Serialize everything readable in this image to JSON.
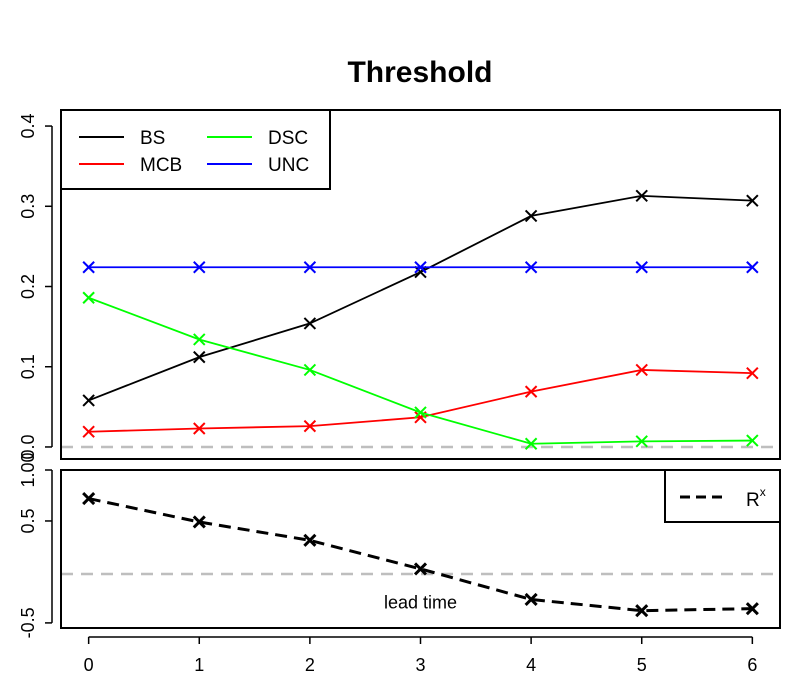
{
  "chart_data": [
    {
      "type": "line",
      "title": "Threshold",
      "xlabel": "",
      "ylabel": "",
      "x": [
        0,
        1,
        2,
        3,
        4,
        5,
        6
      ],
      "xlim": [
        -0.25,
        6.25
      ],
      "ylim": [
        -0.015,
        0.42
      ],
      "yticks": [
        "0.0",
        "0.1",
        "0.2",
        "0.3",
        "0.4"
      ],
      "ytick_values": [
        0,
        0.1,
        0.2,
        0.3,
        0.4
      ],
      "reference_line": {
        "y": 0,
        "style": "dashed",
        "color": "#bebebe"
      },
      "legend": {
        "placement": "top-left",
        "columns": 2
      },
      "series": [
        {
          "name": "BS",
          "color": "#000000",
          "values": [
            0.058,
            0.112,
            0.154,
            0.218,
            0.288,
            0.313,
            0.307
          ]
        },
        {
          "name": "MCB",
          "color": "#ff0000",
          "values": [
            0.019,
            0.023,
            0.026,
            0.037,
            0.069,
            0.096,
            0.092
          ]
        },
        {
          "name": "DSC",
          "color": "#00ff00",
          "values": [
            0.186,
            0.134,
            0.096,
            0.043,
            0.004,
            0.007,
            0.008
          ]
        },
        {
          "name": "UNC",
          "color": "#0000ff",
          "values": [
            0.224,
            0.224,
            0.224,
            0.224,
            0.224,
            0.224,
            0.224
          ]
        }
      ]
    },
    {
      "type": "line",
      "title": "",
      "xlabel": "",
      "ylabel": "",
      "x": [
        0,
        1,
        2,
        3,
        4,
        5,
        6
      ],
      "xlim": [
        -0.25,
        6.25
      ],
      "xticks": [
        "0",
        "1",
        "2",
        "3",
        "4",
        "5",
        "6"
      ],
      "ylim": [
        -0.55,
        1.0
      ],
      "yticks": [
        "-0.5",
        "0.5",
        "1.00"
      ],
      "ytick_values": [
        -0.5,
        0.5,
        1.0
      ],
      "reference_line": {
        "y": 0,
        "style": "dashed",
        "color": "#bebebe"
      },
      "annotation": "lead time",
      "annotation_at": {
        "x": 3,
        "y": -0.3
      },
      "legend": {
        "placement": "top-right"
      },
      "series": [
        {
          "name": "R",
          "name_superscript": "x",
          "color": "#000000",
          "style": "dashed",
          "values": [
            0.72,
            0.49,
            0.31,
            0.03,
            -0.27,
            -0.38,
            -0.36
          ]
        }
      ]
    }
  ]
}
